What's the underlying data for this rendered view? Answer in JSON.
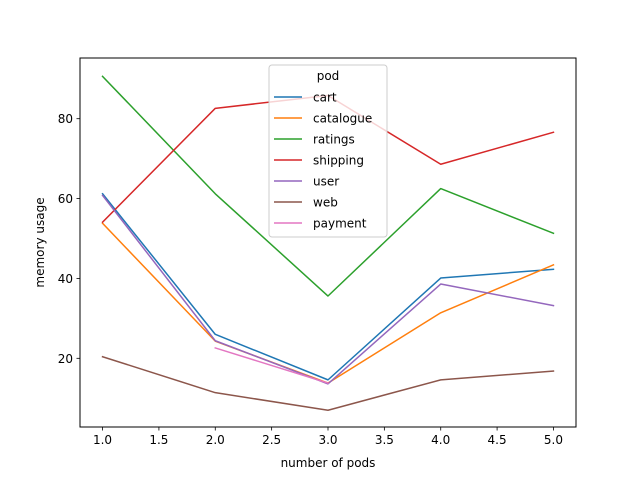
{
  "chart_data": {
    "type": "line",
    "title": "",
    "xlabel": "number of pods",
    "ylabel": "memory usage",
    "xlim": [
      0.8,
      5.2
    ],
    "ylim": [
      2.8,
      95.2
    ],
    "x_ticks": [
      "1.0",
      "1.5",
      "2.0",
      "2.5",
      "3.0",
      "3.5",
      "4.0",
      "4.5",
      "5.0"
    ],
    "y_ticks": [
      "20",
      "40",
      "60",
      "80"
    ],
    "grid": false,
    "legend_title": "pod",
    "legend_position": "top-center",
    "series": [
      {
        "name": "cart",
        "color": "#1f77b4",
        "x": [
          1,
          2,
          3,
          4,
          5
        ],
        "y": [
          61.2,
          26.0,
          14.6,
          40.1,
          42.3
        ]
      },
      {
        "name": "catalogue",
        "color": "#ff7f0e",
        "x": [
          1,
          2,
          3,
          4,
          5
        ],
        "y": [
          53.8,
          24.3,
          13.8,
          31.4,
          43.4
        ]
      },
      {
        "name": "ratings",
        "color": "#2ca02c",
        "x": [
          1,
          2,
          3,
          4,
          5
        ],
        "y": [
          90.6,
          61.2,
          35.6,
          62.5,
          51.3
        ]
      },
      {
        "name": "shipping",
        "color": "#d62728",
        "x": [
          1,
          2,
          3,
          4,
          5
        ],
        "y": [
          54.1,
          82.6,
          85.8,
          68.6,
          76.6
        ]
      },
      {
        "name": "user",
        "color": "#9467bd",
        "x": [
          1,
          2,
          3,
          4,
          5
        ],
        "y": [
          60.8,
          24.4,
          13.6,
          38.6,
          33.2
        ]
      },
      {
        "name": "web",
        "color": "#8c564b",
        "x": [
          1,
          2,
          3,
          4,
          5
        ],
        "y": [
          20.4,
          11.4,
          7.0,
          14.6,
          16.8
        ]
      },
      {
        "name": "payment",
        "color": "#e377c2",
        "x": [
          2,
          3
        ],
        "y": [
          22.6,
          13.8
        ]
      }
    ]
  }
}
